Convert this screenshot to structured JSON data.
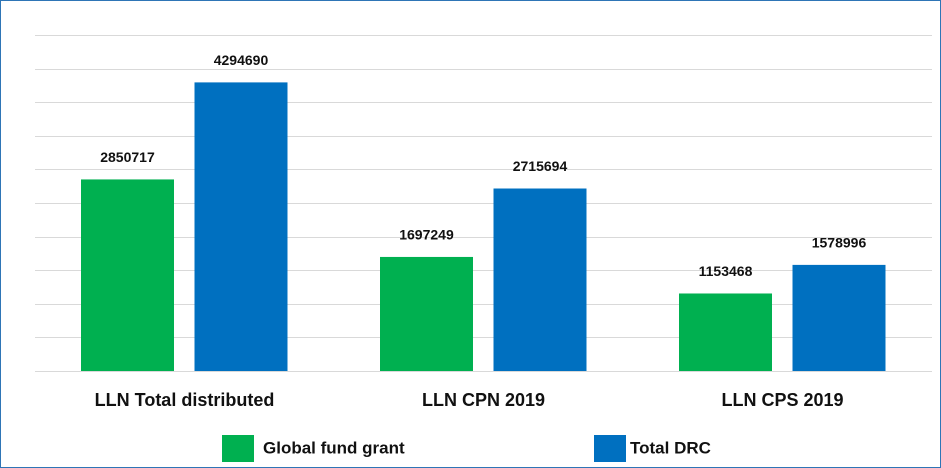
{
  "chart_data": {
    "type": "bar",
    "categories": [
      "LLN Total distributed",
      "LLN CPN 2019",
      "LLN CPS 2019"
    ],
    "series": [
      {
        "name": "Global fund grant",
        "color": "#00b050",
        "values": [
          2850717,
          1697249,
          1153468
        ]
      },
      {
        "name": "Total DRC",
        "color": "#0070c0",
        "values": [
          4294690,
          2715694,
          1578996
        ]
      }
    ],
    "ylim": [
      0,
      5000000
    ],
    "yticks": [
      0,
      500000,
      1000000,
      1500000,
      2000000,
      2500000,
      3000000,
      3500000,
      4000000,
      4500000,
      5000000
    ],
    "grid": true
  }
}
